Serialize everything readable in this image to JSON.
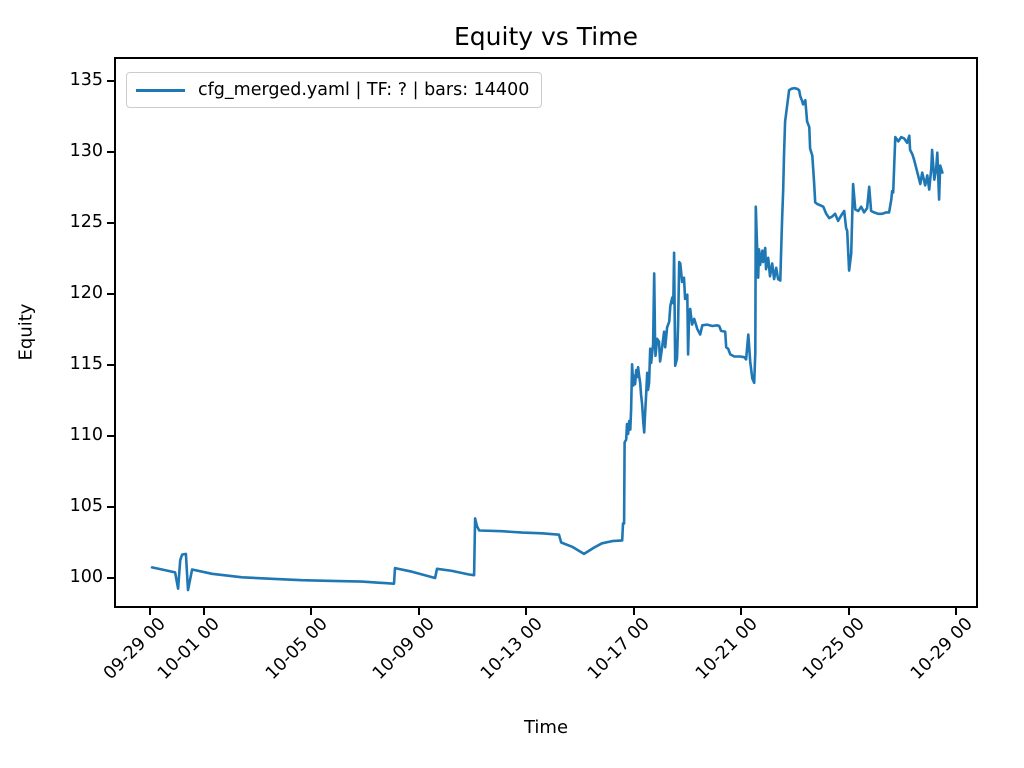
{
  "chart_data": {
    "type": "line",
    "title": "Equity vs Time",
    "xlabel": "Time",
    "ylabel": "Equity",
    "legend_position": "upper left",
    "grid": false,
    "line_color": "#1f77b4",
    "x_unit": "days since 09-29 00:00",
    "x_range_days": [
      -1.34,
      30.8
    ],
    "y_range": [
      97.9,
      136.7
    ],
    "x_ticks": [
      {
        "label": "09-29 00",
        "day": 0
      },
      {
        "label": "10-01 00",
        "day": 2
      },
      {
        "label": "10-05 00",
        "day": 6
      },
      {
        "label": "10-09 00",
        "day": 10
      },
      {
        "label": "10-13 00",
        "day": 14
      },
      {
        "label": "10-17 00",
        "day": 18
      },
      {
        "label": "10-21 00",
        "day": 22
      },
      {
        "label": "10-25 00",
        "day": 26
      },
      {
        "label": "10-29 00",
        "day": 30
      }
    ],
    "y_ticks": [
      100,
      105,
      110,
      115,
      120,
      125,
      130,
      135
    ],
    "series": [
      {
        "name": "cfg_merged.yaml | TF: ? | bars: 14400",
        "color": "#1f77b4",
        "points": [
          [
            0,
            100.9
          ],
          [
            0.37,
            100.75
          ],
          [
            0.86,
            100.55
          ],
          [
            0.97,
            99.4
          ],
          [
            1.05,
            101.4
          ],
          [
            1.12,
            101.8
          ],
          [
            1.26,
            101.85
          ],
          [
            1.34,
            99.3
          ],
          [
            1.49,
            100.75
          ],
          [
            2.23,
            100.45
          ],
          [
            3.35,
            100.2
          ],
          [
            4.46,
            100.1
          ],
          [
            5.58,
            100.0
          ],
          [
            6.7,
            99.95
          ],
          [
            7.81,
            99.9
          ],
          [
            9.0,
            99.75
          ],
          [
            9.04,
            100.85
          ],
          [
            9.67,
            100.6
          ],
          [
            10.53,
            100.15
          ],
          [
            10.6,
            100.8
          ],
          [
            11.16,
            100.65
          ],
          [
            11.79,
            100.4
          ],
          [
            11.98,
            100.35
          ],
          [
            12.02,
            104.35
          ],
          [
            12.09,
            103.8
          ],
          [
            12.17,
            103.5
          ],
          [
            13.02,
            103.45
          ],
          [
            13.77,
            103.35
          ],
          [
            14.51,
            103.3
          ],
          [
            15.14,
            103.2
          ],
          [
            15.22,
            102.65
          ],
          [
            15.63,
            102.35
          ],
          [
            16.07,
            101.85
          ],
          [
            16.45,
            102.3
          ],
          [
            16.74,
            102.6
          ],
          [
            17.12,
            102.75
          ],
          [
            17.49,
            102.8
          ],
          [
            17.52,
            104.0
          ],
          [
            17.56,
            104.0
          ],
          [
            17.58,
            109.7
          ],
          [
            17.64,
            109.9
          ],
          [
            17.67,
            111.0
          ],
          [
            17.71,
            110.3
          ],
          [
            17.75,
            111.2
          ],
          [
            17.79,
            110.6
          ],
          [
            17.82,
            112.0
          ],
          [
            17.86,
            115.2
          ],
          [
            17.9,
            113.7
          ],
          [
            17.93,
            114.4
          ],
          [
            17.97,
            113.8
          ],
          [
            18.01,
            114.8
          ],
          [
            18.05,
            114.3
          ],
          [
            18.08,
            115.0
          ],
          [
            18.12,
            114.4
          ],
          [
            18.16,
            113.9
          ],
          [
            18.19,
            113.1
          ],
          [
            18.23,
            112.4
          ],
          [
            18.27,
            111.2
          ],
          [
            18.31,
            110.4
          ],
          [
            18.34,
            111.6
          ],
          [
            18.38,
            113.0
          ],
          [
            18.42,
            114.6
          ],
          [
            18.45,
            113.4
          ],
          [
            18.49,
            113.9
          ],
          [
            18.53,
            116.3
          ],
          [
            18.57,
            115.3
          ],
          [
            18.6,
            115.9
          ],
          [
            18.64,
            116.6
          ],
          [
            18.68,
            121.6
          ],
          [
            18.71,
            117.1
          ],
          [
            18.73,
            115.8
          ],
          [
            18.79,
            117.0
          ],
          [
            18.86,
            116.8
          ],
          [
            18.9,
            115.4
          ],
          [
            18.98,
            116.5
          ],
          [
            19.05,
            117.5
          ],
          [
            19.09,
            116.4
          ],
          [
            19.16,
            117.8
          ],
          [
            19.24,
            118.2
          ],
          [
            19.28,
            119.3
          ],
          [
            19.35,
            119.9
          ],
          [
            19.39,
            119.5
          ],
          [
            19.42,
            123.05
          ],
          [
            19.46,
            115.1
          ],
          [
            19.53,
            115.6
          ],
          [
            19.57,
            118.0
          ],
          [
            19.61,
            122.4
          ],
          [
            19.65,
            122.3
          ],
          [
            19.72,
            121.0
          ],
          [
            19.79,
            121.3
          ],
          [
            19.83,
            119.8
          ],
          [
            19.91,
            120.1
          ],
          [
            19.94,
            115.9
          ],
          [
            19.98,
            118.7
          ],
          [
            20.02,
            119.1
          ],
          [
            20.09,
            118.0
          ],
          [
            20.17,
            118.4
          ],
          [
            20.28,
            117.7
          ],
          [
            20.39,
            117.3
          ],
          [
            20.47,
            117.95
          ],
          [
            20.65,
            118.0
          ],
          [
            20.84,
            117.9
          ],
          [
            21.02,
            117.95
          ],
          [
            21.1,
            117.9
          ],
          [
            21.17,
            117.55
          ],
          [
            21.32,
            117.5
          ],
          [
            21.36,
            116.4
          ],
          [
            21.43,
            116.3
          ],
          [
            21.51,
            115.9
          ],
          [
            21.66,
            115.75
          ],
          [
            21.88,
            115.75
          ],
          [
            22.03,
            115.7
          ],
          [
            22.1,
            115.55
          ],
          [
            22.18,
            117.3
          ],
          [
            22.25,
            115.4
          ],
          [
            22.33,
            114.2
          ],
          [
            22.4,
            113.9
          ],
          [
            22.44,
            116.0
          ],
          [
            22.46,
            126.3
          ],
          [
            22.49,
            124.5
          ],
          [
            22.55,
            121.3
          ],
          [
            22.58,
            123.3
          ],
          [
            22.62,
            122.2
          ],
          [
            22.7,
            123.2
          ],
          [
            22.73,
            122.4
          ],
          [
            22.81,
            123.4
          ],
          [
            22.84,
            121.9
          ],
          [
            22.92,
            122.7
          ],
          [
            22.99,
            121.4
          ],
          [
            23.07,
            122.3
          ],
          [
            23.14,
            121.2
          ],
          [
            23.22,
            122.0
          ],
          [
            23.29,
            121.2
          ],
          [
            23.37,
            121.1
          ],
          [
            23.4,
            123.1
          ],
          [
            23.44,
            125.4
          ],
          [
            23.48,
            127.5
          ],
          [
            23.51,
            129.9
          ],
          [
            23.55,
            132.3
          ],
          [
            23.63,
            133.5
          ],
          [
            23.7,
            134.5
          ],
          [
            23.78,
            134.6
          ],
          [
            23.89,
            134.65
          ],
          [
            24.0,
            134.6
          ],
          [
            24.07,
            134.5
          ],
          [
            24.11,
            134.1
          ],
          [
            24.19,
            133.7
          ],
          [
            24.22,
            133.5
          ],
          [
            24.3,
            133.8
          ],
          [
            24.37,
            132.3
          ],
          [
            24.45,
            131.9
          ],
          [
            24.48,
            130.4
          ],
          [
            24.56,
            129.9
          ],
          [
            24.63,
            128.0
          ],
          [
            24.67,
            126.6
          ],
          [
            24.74,
            126.5
          ],
          [
            24.86,
            126.4
          ],
          [
            24.97,
            126.3
          ],
          [
            25.08,
            125.8
          ],
          [
            25.19,
            125.5
          ],
          [
            25.3,
            125.6
          ],
          [
            25.41,
            125.8
          ],
          [
            25.52,
            125.3
          ],
          [
            25.64,
            125.7
          ],
          [
            25.75,
            126.0
          ],
          [
            25.82,
            124.8
          ],
          [
            25.86,
            124.6
          ],
          [
            25.93,
            121.8
          ],
          [
            26.01,
            123.0
          ],
          [
            26.08,
            127.9
          ],
          [
            26.16,
            126.1
          ],
          [
            26.27,
            126.0
          ],
          [
            26.38,
            126.3
          ],
          [
            26.49,
            125.9
          ],
          [
            26.6,
            126.2
          ],
          [
            26.68,
            127.7
          ],
          [
            26.75,
            126.0
          ],
          [
            26.86,
            125.9
          ],
          [
            27.01,
            125.8
          ],
          [
            27.16,
            125.8
          ],
          [
            27.31,
            125.9
          ],
          [
            27.42,
            125.9
          ],
          [
            27.5,
            126.8
          ],
          [
            27.53,
            127.4
          ],
          [
            27.57,
            127.3
          ],
          [
            27.61,
            129.2
          ],
          [
            27.65,
            131.2
          ],
          [
            27.76,
            130.9
          ],
          [
            27.87,
            131.2
          ],
          [
            27.98,
            131.1
          ],
          [
            28.09,
            130.8
          ],
          [
            28.17,
            131.3
          ],
          [
            28.2,
            130.3
          ],
          [
            28.28,
            130.0
          ],
          [
            28.35,
            129.6
          ],
          [
            28.47,
            128.7
          ],
          [
            28.58,
            127.9
          ],
          [
            28.65,
            128.7
          ],
          [
            28.76,
            127.8
          ],
          [
            28.84,
            128.5
          ],
          [
            28.91,
            127.5
          ],
          [
            28.99,
            129.0
          ],
          [
            29.02,
            130.3
          ],
          [
            29.1,
            128.2
          ],
          [
            29.17,
            129.0
          ],
          [
            29.21,
            130.1
          ],
          [
            29.28,
            126.8
          ],
          [
            29.32,
            129.2
          ],
          [
            29.4,
            128.7
          ]
        ]
      }
    ]
  }
}
